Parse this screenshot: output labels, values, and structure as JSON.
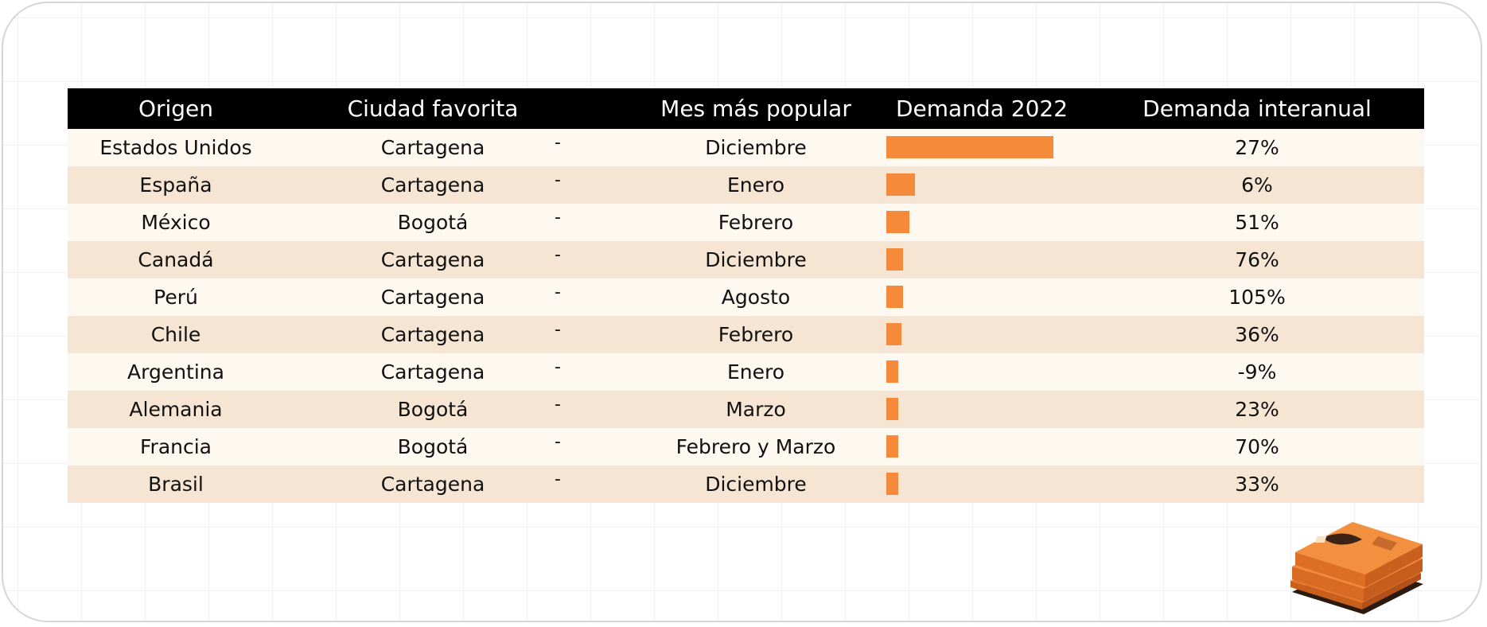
{
  "chart_data": {
    "type": "table",
    "columns": [
      "Origen",
      "Ciudad favorita",
      "Mes más popular",
      "Demanda 2022",
      "Demanda interanual"
    ],
    "rows": [
      {
        "origen": "Estados Unidos",
        "ciudad": "Cartagena",
        "dash": "-",
        "mes": "Diciembre",
        "demanda": 100,
        "interanual": "27%"
      },
      {
        "origen": "España",
        "ciudad": "Cartagena",
        "dash": "-",
        "mes": "Enero",
        "demanda": 17,
        "interanual": "6%"
      },
      {
        "origen": "México",
        "ciudad": "Bogotá",
        "dash": "-",
        "mes": "Febrero",
        "demanda": 14,
        "interanual": "51%"
      },
      {
        "origen": "Canadá",
        "ciudad": "Cartagena",
        "dash": "-",
        "mes": "Diciembre",
        "demanda": 10,
        "interanual": "76%"
      },
      {
        "origen": "Perú",
        "ciudad": "Cartagena",
        "dash": "-",
        "mes": "Agosto",
        "demanda": 10,
        "interanual": "105%"
      },
      {
        "origen": "Chile",
        "ciudad": "Cartagena",
        "dash": "-",
        "mes": "Febrero",
        "demanda": 9,
        "interanual": "36%"
      },
      {
        "origen": "Argentina",
        "ciudad": "Cartagena",
        "dash": "-",
        "mes": "Enero",
        "demanda": 7,
        "interanual": "-9%"
      },
      {
        "origen": "Alemania",
        "ciudad": "Bogotá",
        "dash": "-",
        "mes": "Marzo",
        "demanda": 7,
        "interanual": "23%"
      },
      {
        "origen": "Francia",
        "ciudad": "Bogotá",
        "dash": "-",
        "mes": "Febrero y Marzo",
        "demanda": 7,
        "interanual": "70%"
      },
      {
        "origen": "Brasil",
        "ciudad": "Cartagena",
        "dash": "-",
        "mes": "Diciembre",
        "demanda": 7,
        "interanual": "33%"
      }
    ],
    "demanda_max": 100,
    "bar_color": "#f58a3b"
  },
  "decoration": {
    "icon": "folded-shirt-stack-icon"
  }
}
